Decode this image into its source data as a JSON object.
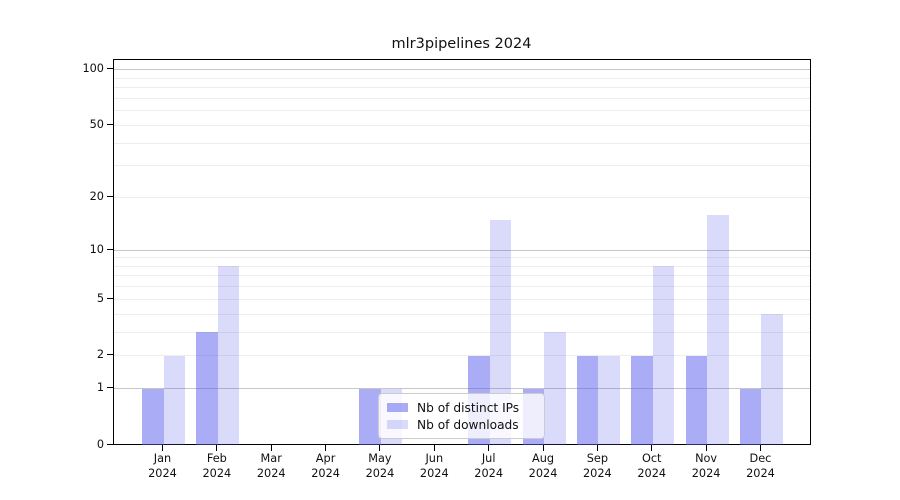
{
  "chart_data": {
    "type": "bar",
    "title": "mlr3pipelines 2024",
    "categories": [
      "Jan",
      "Feb",
      "Mar",
      "Apr",
      "May",
      "Jun",
      "Jul",
      "Aug",
      "Sep",
      "Oct",
      "Nov",
      "Dec"
    ],
    "x_tick_year": "2024",
    "series": [
      {
        "name": "Nb of distinct IPs",
        "color": "rgba(85,90,235,0.5)",
        "values": [
          1,
          3,
          0,
          0,
          1,
          0,
          2,
          1,
          2,
          2,
          2,
          1
        ]
      },
      {
        "name": "Nb of downloads",
        "color": "rgba(85,90,235,0.22)",
        "values": [
          2,
          8,
          0,
          0,
          1,
          0,
          15,
          3,
          2,
          8,
          16,
          4
        ]
      }
    ],
    "y_axis": {
      "scale": "log1p",
      "tick_labels": [
        "0",
        "1",
        "2",
        "5",
        "10",
        "20",
        "50",
        "100"
      ],
      "tick_values": [
        0,
        1,
        2,
        5,
        10,
        20,
        50,
        100
      ],
      "range": [
        0,
        113
      ]
    },
    "grid": {
      "major_values": [
        1,
        10,
        100
      ],
      "minor_values": [
        2,
        3,
        4,
        5,
        6,
        7,
        8,
        9,
        20,
        30,
        40,
        50,
        60,
        70,
        80,
        90
      ],
      "major_color": "#c6c6c6",
      "minor_color": "#ededed"
    },
    "legend": {
      "entries": [
        "Nb of distinct IPs",
        "Nb of downloads"
      ],
      "location": "inside-plot-bottom-center"
    },
    "colors": {
      "spine": "#000000",
      "text": "#111111",
      "background": "#ffffff"
    }
  }
}
